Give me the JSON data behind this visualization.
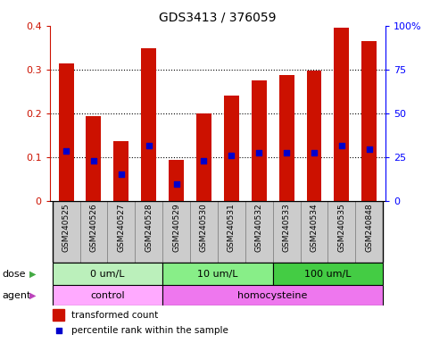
{
  "title": "GDS3413 / 376059",
  "samples": [
    "GSM240525",
    "GSM240526",
    "GSM240527",
    "GSM240528",
    "GSM240529",
    "GSM240530",
    "GSM240531",
    "GSM240532",
    "GSM240533",
    "GSM240534",
    "GSM240535",
    "GSM240848"
  ],
  "red_values": [
    0.315,
    0.195,
    0.138,
    0.348,
    0.095,
    0.2,
    0.24,
    0.275,
    0.288,
    0.298,
    0.395,
    0.365
  ],
  "blue_values": [
    0.115,
    0.092,
    0.063,
    0.128,
    0.04,
    0.092,
    0.105,
    0.11,
    0.11,
    0.11,
    0.128,
    0.118
  ],
  "dose_edges": [
    [
      0,
      4,
      "0 um/L",
      "#bbf0bb"
    ],
    [
      4,
      8,
      "10 um/L",
      "#88ee88"
    ],
    [
      8,
      12,
      "100 um/L",
      "#44cc44"
    ]
  ],
  "agent_edges": [
    [
      0,
      4,
      "control",
      "#ffaaff"
    ],
    [
      4,
      12,
      "homocysteine",
      "#ee77ee"
    ]
  ],
  "red_color": "#cc1100",
  "blue_color": "#0000cc",
  "bar_width": 0.55,
  "sample_bg": "#cccccc",
  "yticks_left": [
    0,
    0.1,
    0.2,
    0.3,
    0.4
  ],
  "ytick_labels_left": [
    "0",
    "0.1",
    "0.2",
    "0.3",
    "0.4"
  ],
  "yticks_right": [
    0,
    25,
    50,
    75,
    100
  ],
  "ytick_labels_right": [
    "0",
    "25",
    "50",
    "75",
    "100%"
  ]
}
